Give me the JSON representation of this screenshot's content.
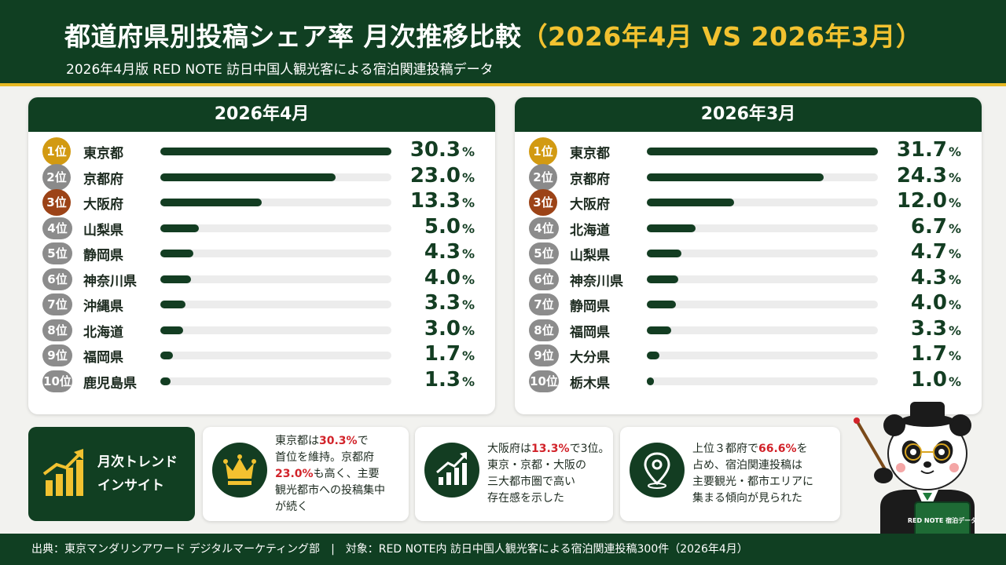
{
  "header": {
    "title_main": "都道府県別投稿シェア率 月次推移比較",
    "title_period": "（2026年4月 VS 2026年3月）",
    "subtitle": "2026年4月版 RED NOTE 訪日中国人観光客による宿泊関連投稿データ"
  },
  "chart_data": [
    {
      "type": "bar",
      "title": "2026年4月",
      "unit": "%",
      "xlim": [
        0,
        30.3
      ],
      "ranks": [
        "1位",
        "2位",
        "3位",
        "4位",
        "5位",
        "6位",
        "7位",
        "8位",
        "9位",
        "10位"
      ],
      "categories": [
        "東京都",
        "京都府",
        "大阪府",
        "山梨県",
        "静岡県",
        "神奈川県",
        "沖縄県",
        "北海道",
        "福岡県",
        "鹿児島県"
      ],
      "values": [
        30.3,
        23.0,
        13.3,
        5.0,
        4.3,
        4.0,
        3.3,
        3.0,
        1.7,
        1.3
      ],
      "labels": [
        "30.3",
        "23.0",
        "13.3",
        "5.0",
        "4.3",
        "4.0",
        "3.3",
        "3.0",
        "1.7",
        "1.3"
      ]
    },
    {
      "type": "bar",
      "title": "2026年3月",
      "unit": "%",
      "xlim": [
        0,
        31.7
      ],
      "ranks": [
        "1位",
        "2位",
        "3位",
        "4位",
        "5位",
        "6位",
        "7位",
        "8位",
        "9位",
        "10位"
      ],
      "categories": [
        "東京都",
        "京都府",
        "大阪府",
        "北海道",
        "山梨県",
        "神奈川県",
        "静岡県",
        "福岡県",
        "大分県",
        "栃木県"
      ],
      "values": [
        31.7,
        24.3,
        12.0,
        6.7,
        4.7,
        4.3,
        4.0,
        3.3,
        1.7,
        1.0
      ],
      "labels": [
        "31.7",
        "24.3",
        "12.0",
        "6.7",
        "4.7",
        "4.3",
        "4.0",
        "3.3",
        "1.7",
        "1.0"
      ]
    }
  ],
  "insights": {
    "title": "月次トレンド\nインサイト",
    "card1": {
      "icon": "crown-icon",
      "p1": "東京都は",
      "r1": "30.3%",
      "p2": "で\n首位を維持。京都府\n",
      "r2": "23.0%",
      "p3": "も高く、主要\n観光都市への投稿集中\nが続く"
    },
    "card2": {
      "icon": "growth-chart-icon",
      "p1": "大阪府は",
      "r1": "13.3%",
      "p2": "で3位。\n東京・京都・大阪の\n三大都市圏で高い\n存在感を示した"
    },
    "card3": {
      "icon": "location-pin-icon",
      "p1": "上位３都府で",
      "r1": "66.6%",
      "p2": "を\n占め、宿泊関連投稿は\n主要観光・都市エリアに\n集まる傾向が見られた"
    }
  },
  "mascot": {
    "book_text": "RED NOTE 宿泊データ"
  },
  "footer": {
    "source": "出典：東京マンダリンアワード デジタルマーケティング部",
    "separator": "|",
    "target": "対象：RED NOTE内 訪日中国人観光客による宿泊関連投稿300件（2026年4月）"
  },
  "colors": {
    "primary": "#103f22",
    "accent": "#f2c230",
    "gold": "#d29a12",
    "silver": "#8a8a8a",
    "bronze": "#9c4317",
    "highlight": "#d2232a"
  }
}
